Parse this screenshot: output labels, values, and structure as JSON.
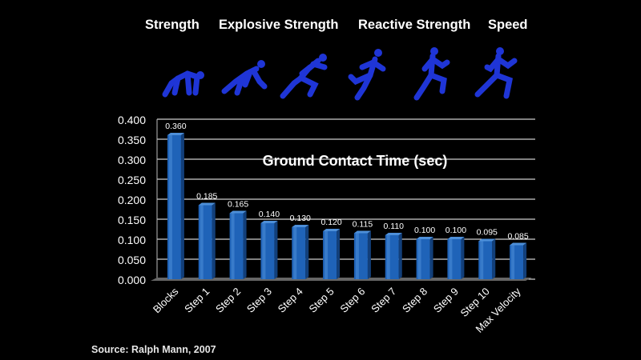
{
  "phases": [
    "Strength",
    "Explosive Strength",
    "Reactive Strength",
    "Speed"
  ],
  "source": "Source:  Ralph Mann, 2007",
  "colors": {
    "bar": "#1f63b8",
    "bar_light": "#4d8fd9",
    "bar_dark": "#123f7a",
    "runner": "#1f35d6",
    "background": "#000000"
  },
  "chart_data": {
    "type": "bar",
    "title": "Ground Contact Time (sec)",
    "categories": [
      "Blocks",
      "Step 1",
      "Step 2",
      "Step 3",
      "Step 4",
      "Step 5",
      "Step 6",
      "Step 7",
      "Step 8",
      "Step 9",
      "Step 10",
      "Max Velocity"
    ],
    "values": [
      0.36,
      0.185,
      0.165,
      0.14,
      0.13,
      0.12,
      0.115,
      0.11,
      0.1,
      0.1,
      0.095,
      0.085
    ],
    "value_labels": [
      "0.360",
      "0.185",
      "0.165",
      "0.140",
      "0.130",
      "0.120",
      "0.115",
      "0.110",
      "0.100",
      "0.100",
      "0.095",
      "0.085"
    ],
    "ylim": [
      0,
      0.4
    ],
    "yticks": [
      "0.000",
      "0.050",
      "0.100",
      "0.150",
      "0.200",
      "0.250",
      "0.300",
      "0.350",
      "0.400"
    ],
    "grid": true
  }
}
